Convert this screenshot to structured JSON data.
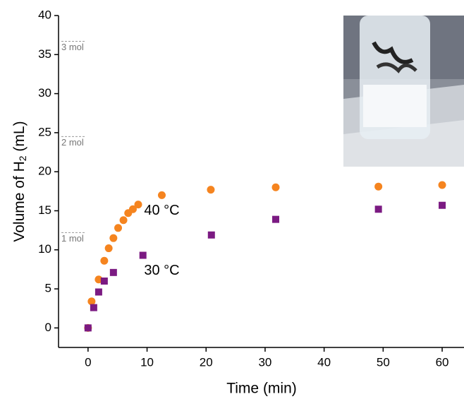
{
  "chart_data": {
    "type": "scatter",
    "x_label": "Time (min)",
    "y_label_parts": [
      "Volume of H",
      "2",
      " (mL)"
    ],
    "xlim": [
      -5,
      63.7
    ],
    "ylim": [
      -2.5,
      40
    ],
    "xticks": [
      0,
      10,
      20,
      30,
      40,
      50,
      60
    ],
    "yticks": [
      0,
      5,
      10,
      15,
      20,
      25,
      30,
      35,
      40
    ],
    "series": [
      {
        "name": "40 °C",
        "color": "#f5841f",
        "marker": "circle",
        "x": [
          0,
          0.6,
          1.8,
          2.75,
          3.5,
          4.3,
          5.1,
          6.0,
          6.8,
          7.6,
          8.5,
          12.5,
          20.8,
          31.8,
          49.2,
          60
        ],
        "values": [
          0,
          3.4,
          6.2,
          8.6,
          10.2,
          11.5,
          12.8,
          13.8,
          14.7,
          15.2,
          15.8,
          17.0,
          17.7,
          18.0,
          18.1,
          18.3
        ],
        "label_x": 9.5,
        "label_y": 15.0
      },
      {
        "name": "30 °C",
        "color": "#7b1a82",
        "marker": "square",
        "x": [
          0,
          0.96,
          1.8,
          2.75,
          4.3,
          9.3,
          20.9,
          31.8,
          49.2,
          60
        ],
        "values": [
          0,
          2.6,
          4.6,
          6.0,
          7.1,
          9.3,
          11.9,
          13.9,
          15.2,
          15.7
        ],
        "label_x": 9.5,
        "label_y": 7.3
      }
    ],
    "annotations": [
      {
        "text": "3 mol",
        "y": 36.7
      },
      {
        "text": "2 mol",
        "y": 24.5
      },
      {
        "text": "1 mol",
        "y": 12.2
      }
    ]
  }
}
